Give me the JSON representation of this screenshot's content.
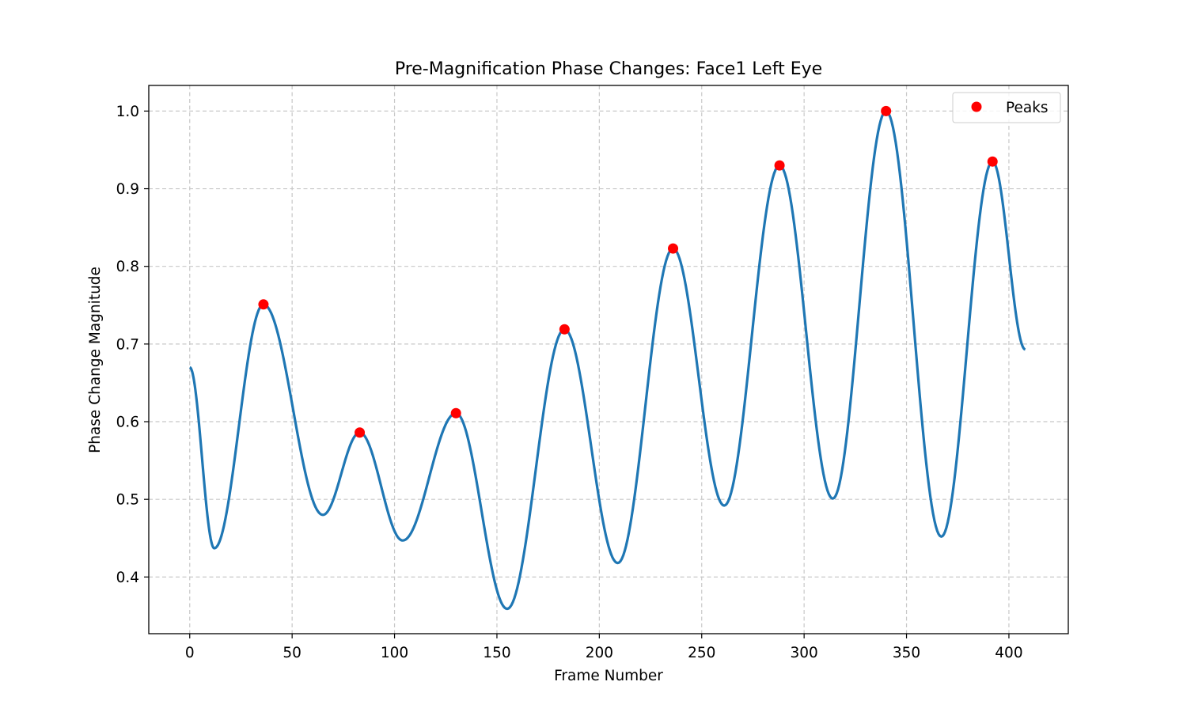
{
  "chart_data": {
    "type": "line",
    "title": "Pre-Magnification Phase Changes: Face1 Left Eye",
    "xlabel": "Frame Number",
    "ylabel": "Phase Change Magnitude",
    "xlim": [
      -20,
      429
    ],
    "ylim": [
      0.327,
      1.033
    ],
    "xticks": [
      0,
      50,
      100,
      150,
      200,
      250,
      300,
      350,
      400
    ],
    "yticks": [
      0.4,
      0.5,
      0.6,
      0.7,
      0.8,
      0.9,
      1.0
    ],
    "xtick_labels": [
      "0",
      "50",
      "100",
      "150",
      "200",
      "250",
      "300",
      "350",
      "400"
    ],
    "ytick_labels": [
      "0.4",
      "0.5",
      "0.6",
      "0.7",
      "0.8",
      "0.9",
      "1.0"
    ],
    "grid": true,
    "legend_position": "top-right",
    "colors": {
      "line": "#1f77b4",
      "peaks": "#ff0000",
      "grid": "#c8c8c8"
    },
    "series": [
      {
        "kind": "line",
        "control_points": [
          [
            0,
            0.67
          ],
          [
            12,
            0.437
          ],
          [
            36,
            0.751
          ],
          [
            65,
            0.48
          ],
          [
            83,
            0.586
          ],
          [
            104,
            0.447
          ],
          [
            130,
            0.611
          ],
          [
            155,
            0.359
          ],
          [
            183,
            0.719
          ],
          [
            209,
            0.418
          ],
          [
            236,
            0.823
          ],
          [
            261,
            0.492
          ],
          [
            288,
            0.93
          ],
          [
            314,
            0.501
          ],
          [
            340,
            1.0
          ],
          [
            367,
            0.452
          ],
          [
            392,
            0.935
          ],
          [
            408,
            0.693
          ]
        ]
      },
      {
        "name": "Peaks",
        "kind": "points",
        "points": [
          [
            36,
            0.751
          ],
          [
            83,
            0.586
          ],
          [
            130,
            0.611
          ],
          [
            183,
            0.719
          ],
          [
            236,
            0.823
          ],
          [
            288,
            0.93
          ],
          [
            340,
            1.0
          ],
          [
            392,
            0.935
          ]
        ]
      }
    ]
  }
}
